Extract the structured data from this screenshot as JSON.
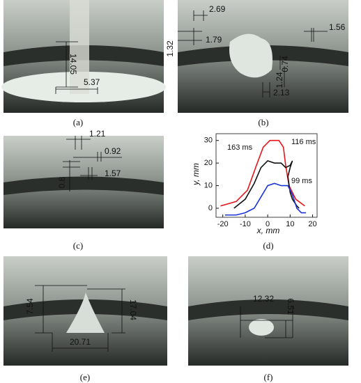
{
  "panels": [
    {
      "label": "(a)",
      "annotations": [
        "14.05",
        "5.37"
      ]
    },
    {
      "label": "(b)",
      "annotations": [
        "2.69",
        "1.79",
        "1.56",
        "1.32",
        "0.74",
        "1.24",
        "2.13"
      ]
    },
    {
      "label": "(c)",
      "annotations": [
        "1.21",
        "0.92",
        "1.57",
        "0.8"
      ]
    },
    {
      "label": "(d)"
    },
    {
      "label": "(e)",
      "annotations": [
        "7.54",
        "17.04",
        "20.71"
      ]
    },
    {
      "label": "(f)",
      "annotations": [
        "12.32",
        "6.51"
      ]
    }
  ],
  "chart_data": {
    "type": "line",
    "x_label": "x, mm",
    "y_label": "y, mm",
    "xlim": [
      -23,
      22
    ],
    "ylim": [
      -4,
      33
    ],
    "xticks": [
      -20,
      -10,
      0,
      10,
      20
    ],
    "yticks": [
      0,
      10,
      20,
      30
    ],
    "series": [
      {
        "name": "163 ms",
        "color": "#e8141a",
        "x": [
          -21,
          -14,
          -9,
          -5,
          -2,
          1,
          5,
          7,
          8,
          9.5,
          12.5,
          16.5
        ],
        "values": [
          1,
          3,
          8,
          19,
          27,
          30,
          30,
          27,
          19,
          10,
          4,
          1
        ]
      },
      {
        "name": "116 ms",
        "color": "#111111",
        "x": [
          -15,
          -10,
          -6,
          -3,
          0,
          3,
          6,
          8,
          10,
          11,
          10,
          9,
          10,
          11,
          13,
          14
        ],
        "values": [
          0,
          4,
          11,
          18,
          21,
          20,
          20,
          18,
          19,
          21,
          18,
          14,
          7,
          4,
          1,
          0
        ]
      },
      {
        "name": "99 ms",
        "color": "#1a33d6",
        "x": [
          -19,
          -14,
          -10,
          -6,
          -3,
          0,
          3,
          6,
          9,
          11,
          13,
          15,
          17
        ],
        "values": [
          -3,
          -3,
          -2,
          0,
          5,
          10,
          11,
          10,
          10,
          6,
          0,
          -2,
          -2
        ]
      }
    ]
  }
}
